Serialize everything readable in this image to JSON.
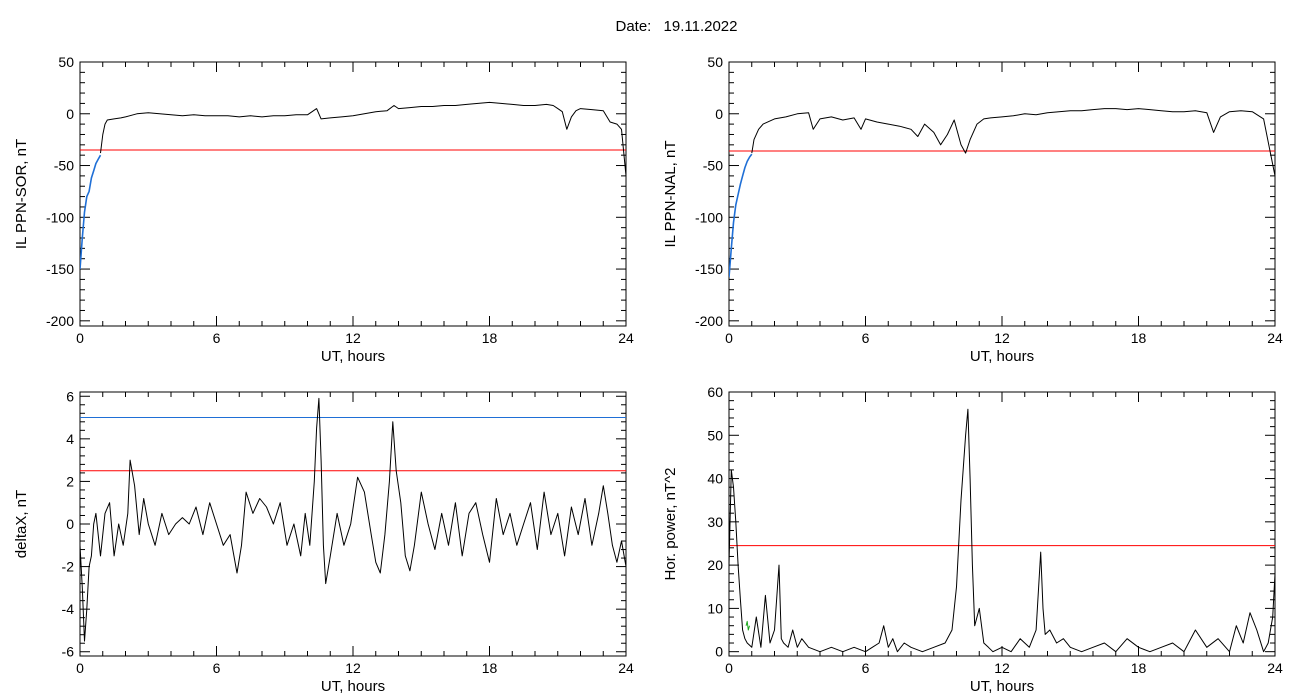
{
  "header": {
    "date_label": "Date:",
    "date_value": "19.11.2022"
  },
  "colors": {
    "trace": "#000000",
    "threshold_red": "#ff0000",
    "threshold_blue": "#1f6fd6",
    "recovery_blue": "#1f6fd6",
    "green_segment": "#1aa61a"
  },
  "chart_data": [
    {
      "id": "il-ppn-sor",
      "type": "line",
      "title": "",
      "xlabel": "UT, hours",
      "ylabel": "IL PPN-SOR, nT",
      "xlim": [
        0,
        24
      ],
      "ylim": [
        -205,
        50
      ],
      "xticks": [
        0,
        6,
        12,
        18,
        24
      ],
      "yticks": [
        50,
        0,
        -50,
        -100,
        -150,
        -200
      ],
      "thresholds": [
        {
          "value": -35,
          "color": "red"
        }
      ],
      "series": [
        {
          "color": "blue",
          "x": [
            0.0,
            0.1,
            0.2,
            0.3,
            0.4,
            0.5,
            0.6,
            0.7,
            0.8,
            0.9
          ],
          "y": [
            -150,
            -120,
            -95,
            -80,
            -75,
            -62,
            -55,
            -48,
            -44,
            -40
          ]
        },
        {
          "color": "black",
          "x": [
            0.9,
            1.0,
            1.1,
            1.2,
            1.5,
            1.8,
            2.0,
            2.5,
            3.0,
            3.5,
            4.0,
            4.5,
            5.0,
            5.5,
            6.0,
            6.5,
            7.0,
            7.5,
            8.0,
            8.5,
            9.0,
            9.5,
            10.0,
            10.4,
            10.6,
            11.0,
            11.5,
            12.0,
            12.5,
            13.0,
            13.5,
            13.8,
            14.0,
            14.5,
            15.0,
            15.5,
            16.0,
            16.5,
            17.0,
            17.5,
            18.0,
            18.5,
            19.0,
            19.5,
            20.0,
            20.5,
            20.8,
            21.0,
            21.2,
            21.4,
            21.6,
            21.8,
            22.0,
            22.5,
            23.0,
            23.3,
            23.6,
            23.8,
            24.0
          ],
          "y": [
            -38,
            -20,
            -10,
            -6,
            -5,
            -4,
            -3,
            0,
            1,
            0,
            -1,
            -2,
            -1,
            -2,
            -2,
            -2,
            -3,
            -2,
            -3,
            -2,
            -2,
            -1,
            -1,
            5,
            -5,
            -4,
            -3,
            -2,
            0,
            2,
            3,
            8,
            5,
            6,
            7,
            7,
            8,
            8,
            9,
            10,
            11,
            10,
            9,
            8,
            8,
            9,
            8,
            5,
            2,
            -15,
            -3,
            3,
            5,
            4,
            3,
            -8,
            -10,
            -15,
            -60
          ]
        }
      ]
    },
    {
      "id": "il-ppn-nal",
      "type": "line",
      "title": "",
      "xlabel": "UT, hours",
      "ylabel": "IL PPN-NAL, nT",
      "xlim": [
        0,
        24
      ],
      "ylim": [
        -205,
        50
      ],
      "xticks": [
        0,
        6,
        12,
        18,
        24
      ],
      "yticks": [
        50,
        0,
        -50,
        -100,
        -150,
        -200
      ],
      "thresholds": [
        {
          "value": -36,
          "color": "red"
        }
      ],
      "series": [
        {
          "color": "blue",
          "x": [
            0.0,
            0.1,
            0.2,
            0.3,
            0.4,
            0.5,
            0.6,
            0.7,
            0.8,
            0.9,
            1.0
          ],
          "y": [
            -158,
            -130,
            -105,
            -88,
            -78,
            -68,
            -60,
            -52,
            -46,
            -42,
            -39
          ]
        },
        {
          "color": "black",
          "x": [
            1.0,
            1.1,
            1.3,
            1.5,
            2.0,
            2.5,
            3.0,
            3.5,
            3.7,
            4.0,
            4.5,
            5.0,
            5.5,
            5.8,
            6.0,
            6.5,
            7.0,
            7.5,
            8.0,
            8.3,
            8.6,
            9.0,
            9.3,
            9.6,
            9.9,
            10.2,
            10.4,
            10.6,
            10.9,
            11.2,
            11.5,
            12.0,
            12.5,
            13.0,
            13.5,
            14.0,
            14.5,
            15.0,
            15.5,
            16.0,
            16.5,
            17.0,
            17.5,
            18.0,
            18.5,
            19.0,
            19.5,
            20.0,
            20.5,
            21.0,
            21.3,
            21.6,
            22.0,
            22.5,
            23.0,
            23.5,
            24.0
          ],
          "y": [
            -38,
            -25,
            -15,
            -10,
            -5,
            -3,
            0,
            1,
            -15,
            -5,
            -3,
            -6,
            -4,
            -15,
            -5,
            -8,
            -10,
            -12,
            -15,
            -22,
            -10,
            -18,
            -30,
            -20,
            -6,
            -30,
            -38,
            -25,
            -10,
            -5,
            -4,
            -3,
            -2,
            0,
            -1,
            1,
            2,
            3,
            3,
            4,
            5,
            5,
            4,
            5,
            4,
            3,
            2,
            2,
            3,
            1,
            -18,
            -3,
            2,
            3,
            2,
            -5,
            -60
          ]
        }
      ]
    },
    {
      "id": "deltax",
      "type": "line",
      "title": "",
      "xlabel": "UT, hours",
      "ylabel": "deltaX, nT",
      "xlim": [
        0,
        24
      ],
      "ylim": [
        -6.2,
        6.2
      ],
      "xticks": [
        0,
        6,
        12,
        18,
        24
      ],
      "yticks": [
        6,
        4,
        2,
        0,
        -2,
        -4,
        -6
      ],
      "thresholds": [
        {
          "value": 5.0,
          "color": "blue"
        },
        {
          "value": 2.5,
          "color": "red"
        }
      ],
      "series": [
        {
          "color": "black",
          "x": [
            0.0,
            0.1,
            0.2,
            0.3,
            0.4,
            0.5,
            0.6,
            0.7,
            0.9,
            1.1,
            1.3,
            1.5,
            1.7,
            1.9,
            2.1,
            2.2,
            2.4,
            2.6,
            2.8,
            3.0,
            3.3,
            3.6,
            3.9,
            4.2,
            4.5,
            4.8,
            5.1,
            5.4,
            5.7,
            6.0,
            6.3,
            6.6,
            6.9,
            7.1,
            7.3,
            7.6,
            7.9,
            8.2,
            8.5,
            8.8,
            9.1,
            9.4,
            9.7,
            9.9,
            10.1,
            10.3,
            10.4,
            10.5,
            10.6,
            10.7,
            10.8,
            11.0,
            11.3,
            11.6,
            11.9,
            12.2,
            12.5,
            12.8,
            13.0,
            13.2,
            13.4,
            13.6,
            13.75,
            13.9,
            14.1,
            14.3,
            14.5,
            14.7,
            15.0,
            15.3,
            15.6,
            15.9,
            16.2,
            16.5,
            16.8,
            17.1,
            17.4,
            17.7,
            18.0,
            18.3,
            18.6,
            18.9,
            19.2,
            19.5,
            19.8,
            20.1,
            20.4,
            20.7,
            21.0,
            21.3,
            21.6,
            21.9,
            22.2,
            22.5,
            22.8,
            23.0,
            23.2,
            23.4,
            23.6,
            23.8,
            24.0
          ],
          "y": [
            -1,
            -3,
            -5.5,
            -4,
            -2,
            -1.5,
            0,
            0.5,
            -1.5,
            0.5,
            1.0,
            -1.5,
            0.0,
            -1.0,
            0.5,
            3.0,
            1.8,
            -0.5,
            1.2,
            0.0,
            -1.0,
            0.5,
            -0.5,
            0.0,
            0.3,
            0.0,
            0.8,
            -0.5,
            1.0,
            0.0,
            -1.0,
            -0.5,
            -2.3,
            -1.0,
            1.5,
            0.5,
            1.2,
            0.8,
            0.0,
            1.0,
            -1.0,
            0.0,
            -1.5,
            0.5,
            -1.0,
            2.0,
            4.5,
            5.9,
            3.0,
            -1.0,
            -2.8,
            -1.5,
            0.5,
            -1.0,
            0.0,
            2.2,
            1.5,
            -0.5,
            -1.8,
            -2.3,
            -0.5,
            2.0,
            4.8,
            2.5,
            1.0,
            -1.5,
            -2.2,
            -1.0,
            1.5,
            0.0,
            -1.2,
            0.5,
            -1.0,
            1.0,
            -1.5,
            0.5,
            1.0,
            -0.5,
            -1.8,
            1.2,
            -0.5,
            0.5,
            -1.0,
            0.0,
            1.0,
            -1.2,
            1.5,
            -0.5,
            0.5,
            -1.5,
            0.8,
            -0.5,
            1.2,
            -1.0,
            0.5,
            1.8,
            0.5,
            -1.0,
            -1.8,
            -0.8,
            -2.0
          ]
        }
      ]
    },
    {
      "id": "hor-power",
      "type": "line",
      "title": "",
      "xlabel": "UT, hours",
      "ylabel": "Hor. power, nT^2",
      "xlim": [
        0,
        24
      ],
      "ylim": [
        -1,
        60
      ],
      "xticks": [
        0,
        6,
        12,
        18,
        24
      ],
      "yticks": [
        60,
        50,
        40,
        30,
        20,
        10,
        0
      ],
      "thresholds": [
        {
          "value": 24.5,
          "color": "red"
        }
      ],
      "series": [
        {
          "color": "black",
          "x": [
            0.0,
            0.1,
            0.2,
            0.3,
            0.4,
            0.5,
            0.6,
            0.7,
            0.8,
            1.0,
            1.2,
            1.4,
            1.6,
            1.8,
            2.0,
            2.2,
            2.3,
            2.4,
            2.6,
            2.8,
            3.0,
            3.2,
            3.5,
            4.0,
            4.5,
            5.0,
            5.5,
            6.0,
            6.3,
            6.6,
            6.8,
            7.0,
            7.2,
            7.4,
            7.7,
            8.0,
            8.5,
            9.0,
            9.5,
            9.8,
            10.0,
            10.2,
            10.4,
            10.5,
            10.6,
            10.7,
            10.8,
            11.0,
            11.2,
            11.4,
            11.6,
            12.0,
            12.4,
            12.8,
            13.2,
            13.5,
            13.7,
            13.8,
            13.9,
            14.1,
            14.4,
            14.7,
            15.0,
            15.5,
            16.0,
            16.5,
            17.0,
            17.5,
            18.0,
            18.5,
            19.0,
            19.5,
            20.0,
            20.5,
            21.0,
            21.5,
            22.0,
            22.3,
            22.6,
            22.9,
            23.2,
            23.5,
            23.7,
            23.9,
            24.0
          ],
          "y": [
            20,
            42,
            38,
            30,
            20,
            12,
            5,
            3,
            2,
            1,
            8,
            1,
            13,
            2,
            5,
            20,
            3,
            2,
            1,
            5,
            1,
            3,
            1,
            0,
            1,
            0,
            1,
            0,
            1,
            2,
            6,
            1,
            3,
            0,
            2,
            1,
            0,
            1,
            2,
            5,
            15,
            35,
            50,
            56,
            40,
            20,
            6,
            10,
            2,
            1,
            0,
            1,
            0,
            3,
            1,
            5,
            23,
            10,
            4,
            5,
            2,
            3,
            1,
            0,
            1,
            2,
            0,
            3,
            1,
            0,
            1,
            2,
            0,
            5,
            1,
            3,
            0,
            6,
            2,
            9,
            5,
            0,
            2,
            8,
            18
          ]
        },
        {
          "color": "green",
          "x": [
            0.75,
            0.8,
            0.85,
            0.9
          ],
          "y": [
            6,
            7,
            5,
            6
          ]
        }
      ]
    }
  ]
}
